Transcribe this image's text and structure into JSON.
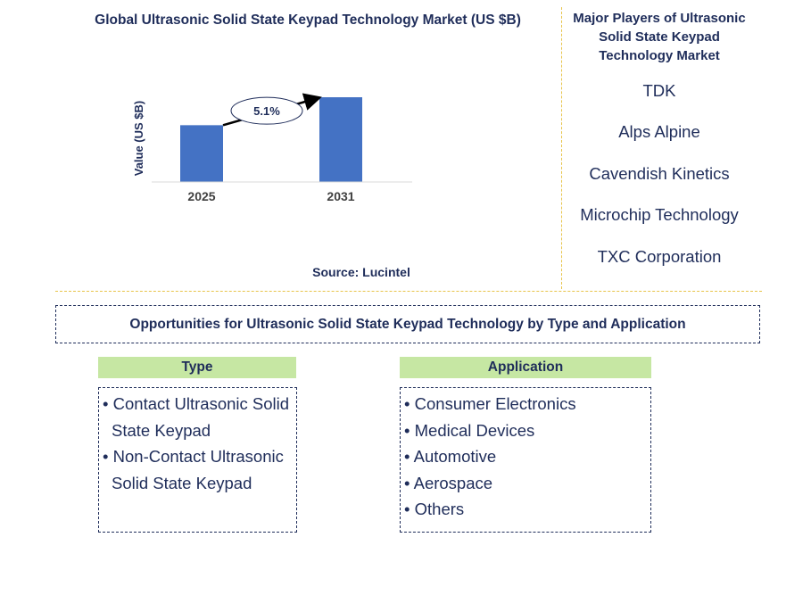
{
  "chart_data": {
    "type": "bar",
    "title": "Global Ultrasonic Solid State Keypad Technology Market (US $B)",
    "ylabel": "Value (US $B)",
    "categories": [
      "2025",
      "2031"
    ],
    "values": [
      0.67,
      1.0
    ],
    "ylim": [
      0,
      1.2
    ],
    "annotation": "5.1%",
    "source": "Source: Lucintel",
    "bar_color": "#4472c4",
    "grid": false
  },
  "players": {
    "title": "Major Players of Ultrasonic Solid State Keypad Technology Market",
    "items": [
      "TDK",
      "Alps Alpine",
      "Cavendish Kinetics",
      "Microchip Technology",
      "TXC Corporation"
    ]
  },
  "opportunities": {
    "title": "Opportunities for Ultrasonic Solid State Keypad Technology by Type and Application",
    "type": {
      "header": "Type",
      "items": [
        "Contact Ultrasonic Solid State Keypad",
        "Non-Contact Ultrasonic Solid State Keypad"
      ]
    },
    "application": {
      "header": "Application",
      "items": [
        "Consumer Electronics",
        "Medical Devices",
        "Automotive",
        "Aerospace",
        "Others"
      ]
    }
  },
  "colors": {
    "text": "#1f2d5a",
    "header_fill": "#c6e7a3",
    "divider": "#e8c44a"
  }
}
